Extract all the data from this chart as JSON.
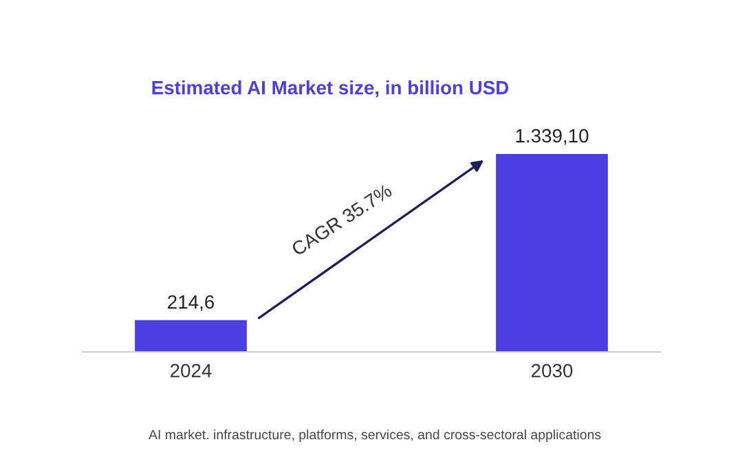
{
  "chart_data": {
    "type": "bar",
    "title": "Estimated AI Market size, in billion USD",
    "categories": [
      "2024",
      "2030"
    ],
    "values": [
      214.6,
      1339.1
    ],
    "value_labels": [
      "214,6",
      "1.339,10"
    ],
    "color": "#4b3fe3",
    "grid": false,
    "annotations": [
      "CAGR 35.7%",
      "AI market. infrastructure, platforms, services, and cross-sectoral applications"
    ]
  }
}
